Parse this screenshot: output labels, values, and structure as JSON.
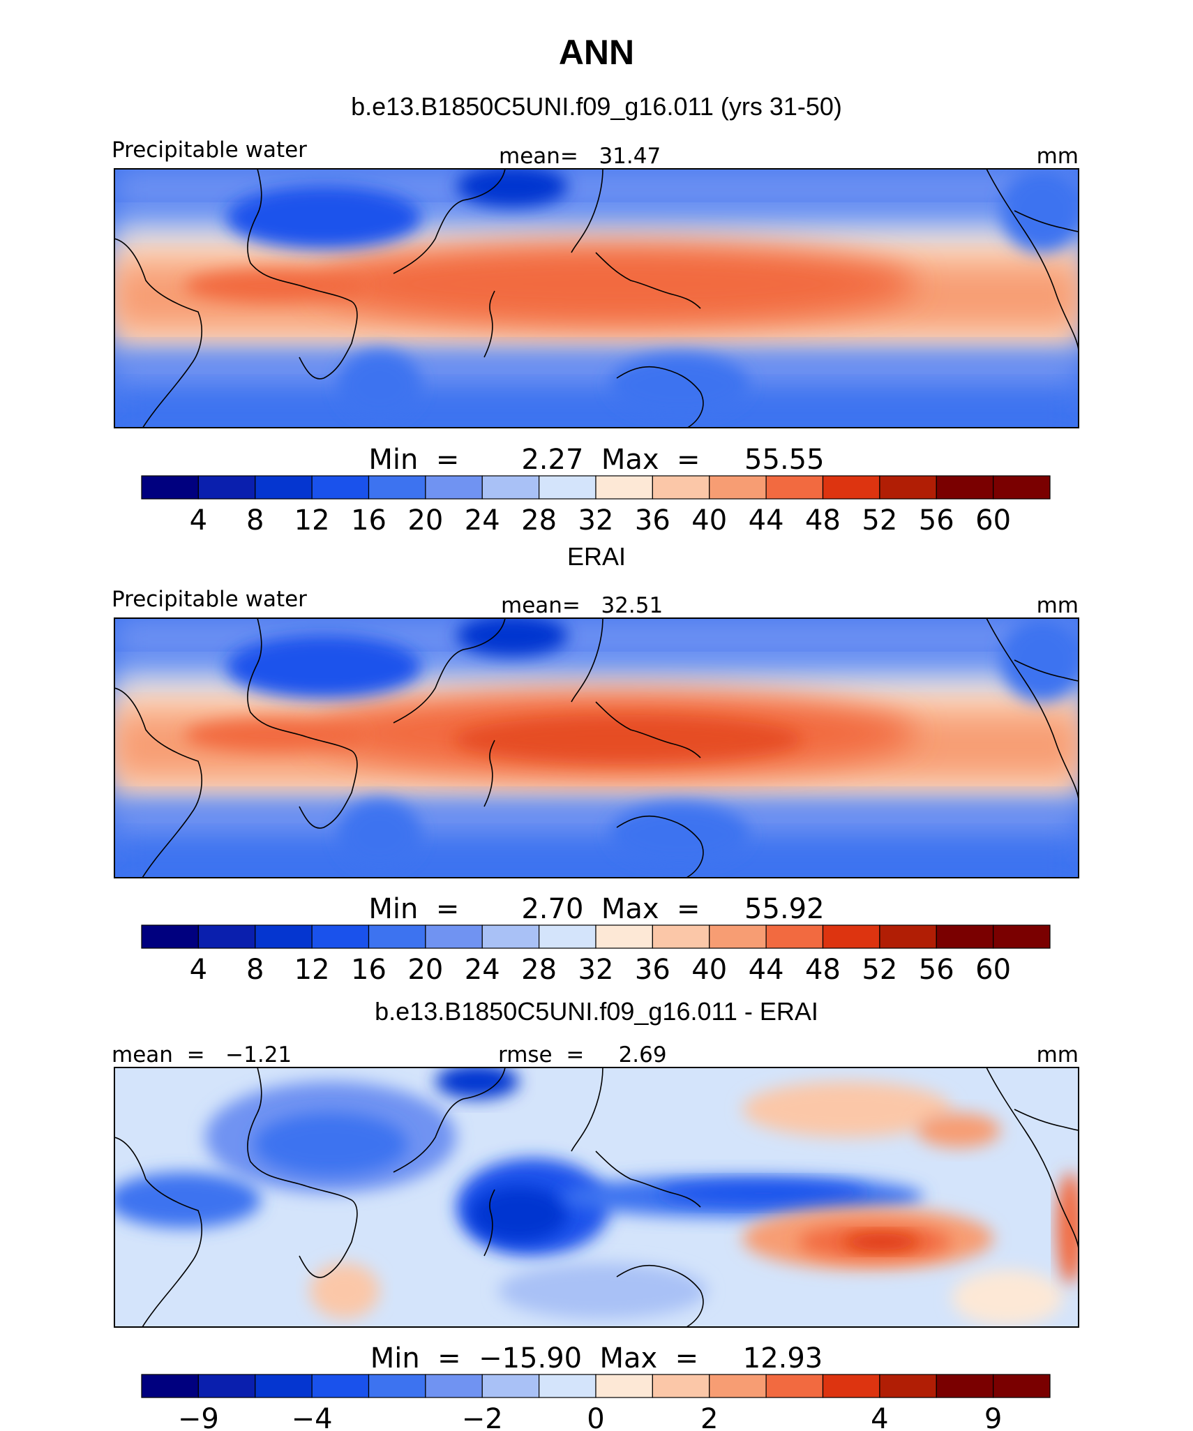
{
  "title": "ANN",
  "colors": {
    "contour_levels": [
      "#00007f",
      "#0a1fae",
      "#0536d0",
      "#1a52ec",
      "#3d73f0",
      "#7093f2",
      "#a9c1f6",
      "#d4e4fb",
      "#fde8d6",
      "#fbc7a8",
      "#f79d73",
      "#f26a40",
      "#dd3410",
      "#b11e05",
      "#7a0000"
    ]
  },
  "chart_data": [
    {
      "type": "heatmap",
      "panel_title": "b.e13.B1850C5UNI.f09_g16.011 (yrs 31-50)",
      "variable": "Precipitable water",
      "stat_left": "",
      "stat_center": "mean=   31.47",
      "units": "mm",
      "minmax": "Min  =       2.27  Max  =     55.55",
      "colorbar_levels": [
        "4",
        "8",
        "12",
        "16",
        "20",
        "24",
        "28",
        "32",
        "36",
        "40",
        "44",
        "48",
        "52",
        "56",
        "60"
      ],
      "field_range": [
        2.27,
        55.55
      ]
    },
    {
      "type": "heatmap",
      "panel_title": "ERAI",
      "variable": "Precipitable water",
      "stat_left": "",
      "stat_center": "mean=   32.51",
      "units": "mm",
      "minmax": "Min  =       2.70  Max  =     55.92",
      "colorbar_levels": [
        "4",
        "8",
        "12",
        "16",
        "20",
        "24",
        "28",
        "32",
        "36",
        "40",
        "44",
        "48",
        "52",
        "56",
        "60"
      ],
      "field_range": [
        2.7,
        55.92
      ]
    },
    {
      "type": "heatmap",
      "panel_title": "b.e13.B1850C5UNI.f09_g16.011 - ERAI",
      "variable": "",
      "stat_left": "mean  =   −1.21",
      "stat_center": "rmse  =     2.69",
      "units": "mm",
      "minmax": "Min  =  −15.90  Max  =     12.93",
      "colorbar_levels": [
        "−9",
        "",
        "−4",
        "",
        "−2",
        "",
        "0",
        "",
        "2",
        "",
        "4",
        "",
        "9"
      ],
      "field_range": [
        -15.9,
        12.93
      ]
    }
  ]
}
